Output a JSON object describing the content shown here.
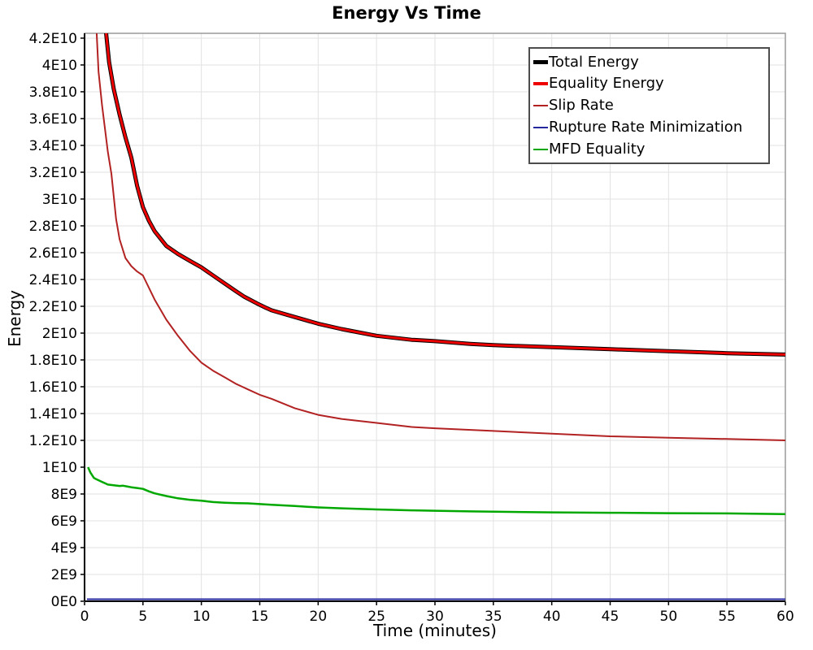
{
  "chart_data": {
    "type": "line",
    "title": "Energy Vs Time",
    "xlabel": "Time (minutes)",
    "ylabel": "Energy",
    "xlim": [
      0,
      60
    ],
    "ylim": [
      0,
      42360000000
    ],
    "grid": true,
    "legend_position": "top-right",
    "x_ticks": [
      0,
      5,
      10,
      15,
      20,
      25,
      30,
      35,
      40,
      45,
      50,
      55,
      60
    ],
    "y_tick_values": [
      0,
      2000000000.0,
      4000000000.0,
      6000000000.0,
      8000000000.0,
      10000000000.0,
      12000000000.0,
      14000000000.0,
      16000000000.0,
      18000000000.0,
      20000000000.0,
      22000000000.0,
      24000000000.0,
      26000000000.0,
      28000000000.0,
      30000000000.0,
      32000000000.0,
      34000000000.0,
      36000000000.0,
      38000000000.0,
      40000000000.0,
      42000000000.0
    ],
    "y_tick_labels": [
      "0E0",
      "2E9",
      "4E9",
      "6E9",
      "8E9",
      "1E10",
      "1.2E10",
      "1.4E10",
      "1.6E10",
      "1.8E10",
      "2E10",
      "2.2E10",
      "2.4E10",
      "2.6E10",
      "2.8E10",
      "3E10",
      "3.2E10",
      "3.4E10",
      "3.6E10",
      "3.8E10",
      "4E10",
      "4.2E10"
    ],
    "series": [
      {
        "name": "Total Energy",
        "color": "#000000",
        "line_width": 5,
        "legend_line_height": 5,
        "points": [
          [
            1.75,
            43200000000.0
          ],
          [
            2.1,
            40200000000.0
          ],
          [
            2.5,
            38200000000.0
          ],
          [
            3,
            36300000000.0
          ],
          [
            3.5,
            34600000000.0
          ],
          [
            4,
            33100000000.0
          ],
          [
            4.5,
            31000000000.0
          ],
          [
            5,
            29400000000.0
          ],
          [
            5.5,
            28400000000.0
          ],
          [
            6,
            27600000000.0
          ],
          [
            7,
            26500000000.0
          ],
          [
            8,
            25900000000.0
          ],
          [
            9,
            25400000000.0
          ],
          [
            10,
            24900000000.0
          ],
          [
            11,
            24300000000.0
          ],
          [
            12,
            23700000000.0
          ],
          [
            13,
            23100000000.0
          ],
          [
            13.7,
            22700000000.0
          ],
          [
            14.8,
            22200000000.0
          ],
          [
            15.5,
            21900000000.0
          ],
          [
            16,
            21700000000.0
          ],
          [
            18,
            21200000000.0
          ],
          [
            20,
            20700000000.0
          ],
          [
            22,
            20300000000.0
          ],
          [
            25,
            19800000000.0
          ],
          [
            28,
            19500000000.0
          ],
          [
            30,
            19400000000.0
          ],
          [
            33,
            19200000000.0
          ],
          [
            35,
            19100000000.0
          ],
          [
            40,
            18950000000.0
          ],
          [
            45,
            18800000000.0
          ],
          [
            50,
            18650000000.0
          ],
          [
            55,
            18500000000.0
          ],
          [
            60,
            18400000000.0
          ]
        ]
      },
      {
        "name": "Equality Energy",
        "color": "#ee0000",
        "line_width": 3,
        "legend_line_height": 4,
        "points": [
          [
            1.75,
            43200000000.0
          ],
          [
            2.1,
            40200000000.0
          ],
          [
            2.5,
            38200000000.0
          ],
          [
            3,
            36300000000.0
          ],
          [
            3.5,
            34600000000.0
          ],
          [
            4,
            33100000000.0
          ],
          [
            4.5,
            31000000000.0
          ],
          [
            5,
            29400000000.0
          ],
          [
            5.5,
            28400000000.0
          ],
          [
            6,
            27600000000.0
          ],
          [
            7,
            26500000000.0
          ],
          [
            8,
            25900000000.0
          ],
          [
            9,
            25400000000.0
          ],
          [
            10,
            24900000000.0
          ],
          [
            11,
            24300000000.0
          ],
          [
            12,
            23700000000.0
          ],
          [
            13,
            23100000000.0
          ],
          [
            13.7,
            22700000000.0
          ],
          [
            14.8,
            22200000000.0
          ],
          [
            15.5,
            21900000000.0
          ],
          [
            16,
            21700000000.0
          ],
          [
            18,
            21200000000.0
          ],
          [
            20,
            20700000000.0
          ],
          [
            22,
            20300000000.0
          ],
          [
            25,
            19800000000.0
          ],
          [
            28,
            19500000000.0
          ],
          [
            30,
            19400000000.0
          ],
          [
            33,
            19200000000.0
          ],
          [
            35,
            19100000000.0
          ],
          [
            40,
            18950000000.0
          ],
          [
            45,
            18800000000.0
          ],
          [
            50,
            18650000000.0
          ],
          [
            55,
            18500000000.0
          ],
          [
            60,
            18400000000.0
          ]
        ]
      },
      {
        "name": "Slip Rate",
        "color": "#b22222",
        "line_width": 2,
        "legend_line_height": 2,
        "points": [
          [
            0.95,
            44000000000.0
          ],
          [
            1.2,
            39500000000.0
          ],
          [
            1.5,
            37000000000.0
          ],
          [
            2,
            33500000000.0
          ],
          [
            2.3,
            31900000000.0
          ],
          [
            2.7,
            28500000000.0
          ],
          [
            3,
            27000000000.0
          ],
          [
            3.5,
            25600000000.0
          ],
          [
            4,
            25000000000.0
          ],
          [
            4.5,
            24600000000.0
          ],
          [
            5,
            24300000000.0
          ],
          [
            6,
            22500000000.0
          ],
          [
            7,
            21000000000.0
          ],
          [
            8,
            19800000000.0
          ],
          [
            9,
            18700000000.0
          ],
          [
            10,
            17800000000.0
          ],
          [
            11,
            17200000000.0
          ],
          [
            12,
            16700000000.0
          ],
          [
            13,
            16200000000.0
          ],
          [
            13.5,
            16000000000.0
          ],
          [
            14,
            15800000000.0
          ],
          [
            15,
            15400000000.0
          ],
          [
            16,
            15100000000.0
          ],
          [
            18,
            14400000000.0
          ],
          [
            20,
            13900000000.0
          ],
          [
            22,
            13600000000.0
          ],
          [
            25,
            13300000000.0
          ],
          [
            28,
            13000000000.0
          ],
          [
            30,
            12900000000.0
          ],
          [
            35,
            12700000000.0
          ],
          [
            40,
            12500000000.0
          ],
          [
            45,
            12300000000.0
          ],
          [
            50,
            12200000000.0
          ],
          [
            55,
            12100000000.0
          ],
          [
            60,
            12000000000.0
          ]
        ]
      },
      {
        "name": "Rupture Rate Minimization",
        "color": "#26269e",
        "line_width": 2,
        "legend_line_height": 2,
        "points": [
          [
            0.2,
            150000000.0
          ],
          [
            10,
            150000000.0
          ],
          [
            20,
            150000000.0
          ],
          [
            30,
            150000000.0
          ],
          [
            40,
            150000000.0
          ],
          [
            50,
            150000000.0
          ],
          [
            60,
            150000000.0
          ]
        ]
      },
      {
        "name": "MFD Equality",
        "color": "#00a800",
        "line_width": 2.5,
        "legend_line_height": 2,
        "points": [
          [
            0.3,
            10000000000.0
          ],
          [
            0.5,
            9600000000.0
          ],
          [
            0.8,
            9200000000.0
          ],
          [
            1,
            9100000000.0
          ],
          [
            1.5,
            8900000000.0
          ],
          [
            2,
            8700000000.0
          ],
          [
            2.5,
            8650000000.0
          ],
          [
            3,
            8600000000.0
          ],
          [
            3.3,
            8620000000.0
          ],
          [
            3.7,
            8550000000.0
          ],
          [
            4,
            8500000000.0
          ],
          [
            4.5,
            8450000000.0
          ],
          [
            5,
            8380000000.0
          ],
          [
            5.5,
            8200000000.0
          ],
          [
            6,
            8050000000.0
          ],
          [
            7,
            7850000000.0
          ],
          [
            8,
            7680000000.0
          ],
          [
            9,
            7570000000.0
          ],
          [
            10,
            7500000000.0
          ],
          [
            11,
            7400000000.0
          ],
          [
            12,
            7350000000.0
          ],
          [
            13,
            7320000000.0
          ],
          [
            14,
            7300000000.0
          ],
          [
            15,
            7250000000.0
          ],
          [
            16,
            7200000000.0
          ],
          [
            18,
            7100000000.0
          ],
          [
            20,
            7000000000.0
          ],
          [
            22,
            6930000000.0
          ],
          [
            25,
            6850000000.0
          ],
          [
            28,
            6780000000.0
          ],
          [
            30,
            6750000000.0
          ],
          [
            33,
            6700000000.0
          ],
          [
            35,
            6680000000.0
          ],
          [
            40,
            6630000000.0
          ],
          [
            45,
            6600000000.0
          ],
          [
            50,
            6570000000.0
          ],
          [
            55,
            6550000000.0
          ],
          [
            60,
            6500000000.0
          ]
        ]
      }
    ],
    "style": {
      "grid_color": "#e2e2e2",
      "border_color": "#9a9a9a",
      "axis_color": "#000000",
      "background": "#ffffff"
    }
  }
}
